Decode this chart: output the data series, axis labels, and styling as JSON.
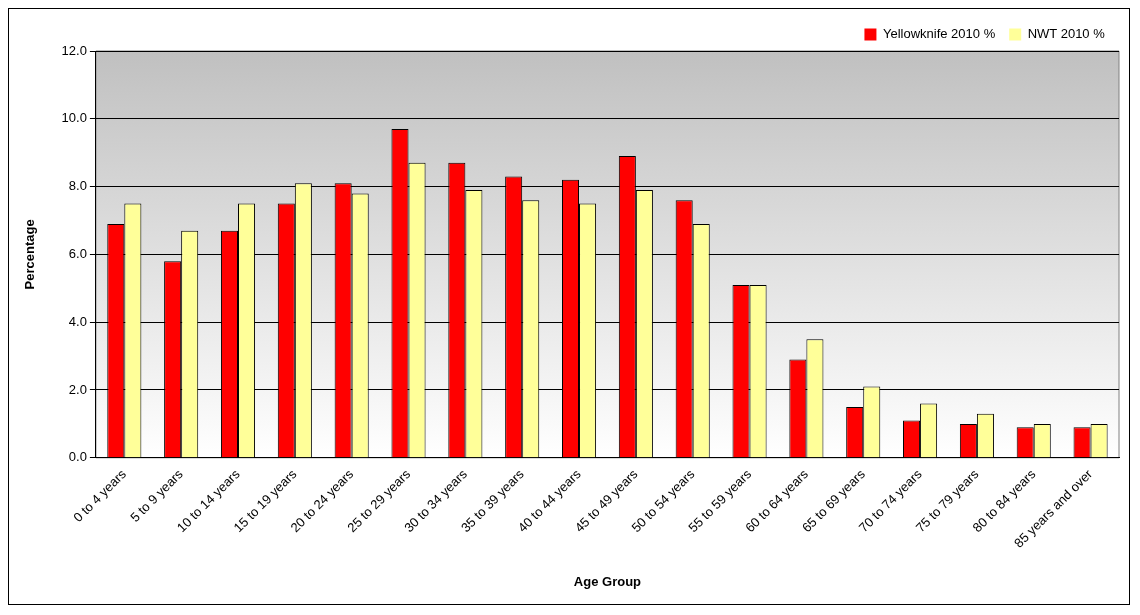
{
  "chart_data": {
    "type": "bar",
    "xlabel": "Age Group",
    "ylabel": "Percentage",
    "categories": [
      "0 to 4 years",
      "5 to 9 years",
      "10 to 14 years",
      "15 to 19 years",
      "20 to 24 years",
      "25 to 29 years",
      "30 to 34 years",
      "35 to 39 years",
      "40 to 44 years",
      "45 to 49 years",
      "50 to 54 years",
      "55 to 59 years",
      "60 to 64 years",
      "65 to 69 years",
      "70 to 74 years",
      "75 to 79 years",
      "80 to 84 years",
      "85 years and over"
    ],
    "series": [
      {
        "name": "Yellowknife 2010 %",
        "color": "#ff0000",
        "values": [
          6.9,
          5.8,
          6.7,
          7.5,
          8.1,
          9.7,
          8.7,
          8.3,
          8.2,
          8.9,
          7.6,
          5.1,
          2.9,
          1.5,
          1.1,
          1.0,
          0.9,
          0.9
        ]
      },
      {
        "name": "NWT 2010 %",
        "color": "#ffff99",
        "values": [
          7.5,
          6.7,
          7.5,
          8.1,
          7.8,
          8.7,
          7.9,
          7.6,
          7.5,
          7.9,
          6.9,
          5.1,
          3.5,
          2.1,
          1.6,
          1.3,
          1.0,
          1.0
        ]
      }
    ],
    "ylim": [
      0,
      12
    ],
    "yticks": [
      {
        "value": 0,
        "label": "0.0"
      },
      {
        "value": 2,
        "label": "2.0"
      },
      {
        "value": 4,
        "label": "4.0"
      },
      {
        "value": 6,
        "label": "6.0"
      },
      {
        "value": 8,
        "label": "8.0"
      },
      {
        "value": 10,
        "label": "10.0"
      },
      {
        "value": 12,
        "label": "12.0"
      }
    ],
    "grid": "y",
    "legend": "top right"
  }
}
